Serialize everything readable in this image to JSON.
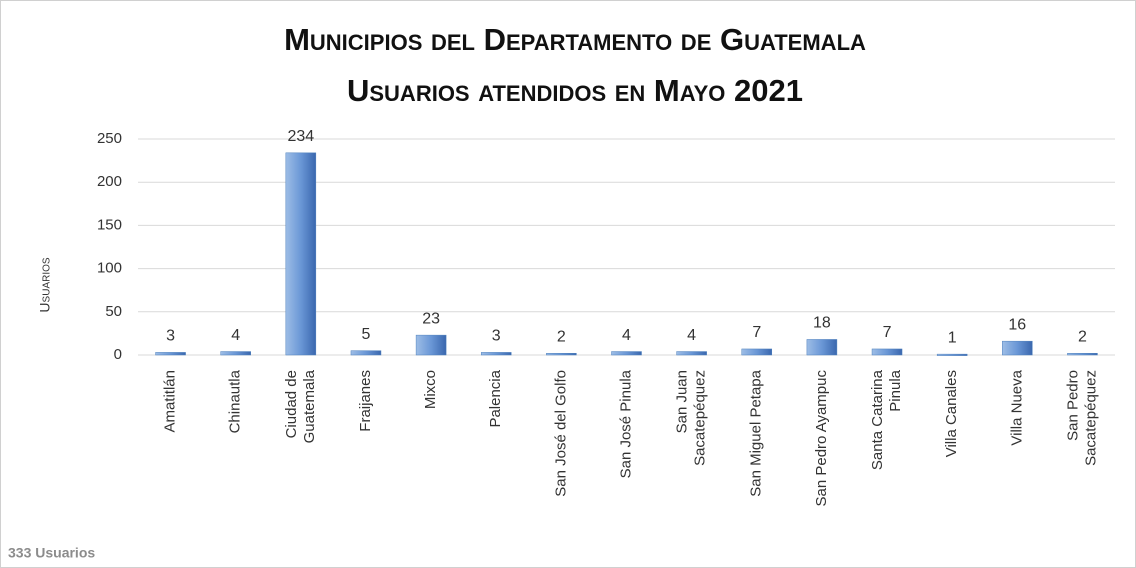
{
  "chart_data": {
    "type": "bar",
    "title": "Municipios del Departamento de Guatemala",
    "subtitle": "Usuarios atendidos en Mayo 2021",
    "y_label": "Usuarios",
    "footer": "333 Usuarios",
    "categories": [
      "Amatitlán",
      "Chinautla",
      "Ciudad de\nGuatemala",
      "Fraijanes",
      "Mixco",
      "Palencia",
      "San José del Golfo",
      "San José Pinula",
      "San Juan\nSacatepéquez",
      "San Miguel Petapa",
      "San Pedro Ayampuc",
      "Santa Catarina\nPinula",
      "Villa Canales",
      "Villa Nueva",
      "San Pedro\nSacatepéquez"
    ],
    "values": [
      3,
      4,
      234,
      5,
      23,
      3,
      2,
      4,
      4,
      7,
      18,
      7,
      1,
      16,
      2
    ],
    "color": "#4f81bd",
    "ylim": [
      0,
      250
    ],
    "yticks": [
      0,
      50,
      100,
      150,
      200,
      250
    ],
    "grid": true
  }
}
